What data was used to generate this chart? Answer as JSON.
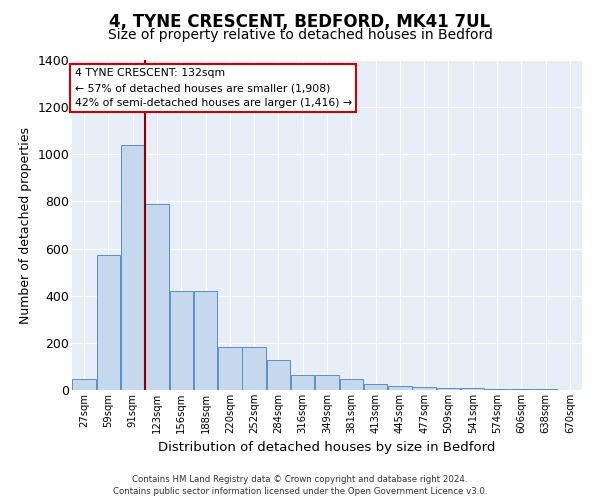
{
  "title": "4, TYNE CRESCENT, BEDFORD, MK41 7UL",
  "subtitle": "Size of property relative to detached houses in Bedford",
  "xlabel": "Distribution of detached houses by size in Bedford",
  "ylabel": "Number of detached properties",
  "categories": [
    "27sqm",
    "59sqm",
    "91sqm",
    "123sqm",
    "156sqm",
    "188sqm",
    "220sqm",
    "252sqm",
    "284sqm",
    "316sqm",
    "349sqm",
    "381sqm",
    "413sqm",
    "445sqm",
    "477sqm",
    "509sqm",
    "541sqm",
    "574sqm",
    "606sqm",
    "638sqm",
    "670sqm"
  ],
  "values": [
    47,
    572,
    1040,
    790,
    420,
    420,
    182,
    182,
    127,
    65,
    65,
    47,
    25,
    18,
    12,
    10,
    8,
    5,
    4,
    3,
    2
  ],
  "bar_color": "#c5d8ee",
  "bar_edge_color": "#5b8ec4",
  "bg_color": "#e8eef8",
  "grid_color": "#ffffff",
  "vline_x": 2.5,
  "vline_color": "#8b0000",
  "annotation_text": "4 TYNE CRESCENT: 132sqm\n← 57% of detached houses are smaller (1,908)\n42% of semi-detached houses are larger (1,416) →",
  "annotation_box_color": "#ffffff",
  "annotation_box_edge": "#cc0000",
  "footer": "Contains HM Land Registry data © Crown copyright and database right 2024.\nContains public sector information licensed under the Open Government Licence v3.0.",
  "ylim": [
    0,
    1400
  ],
  "yticks": [
    0,
    200,
    400,
    600,
    800,
    1000,
    1200,
    1400
  ],
  "title_fontsize": 12,
  "subtitle_fontsize": 10,
  "ylabel_fontsize": 9,
  "xlabel_fontsize": 9.5
}
